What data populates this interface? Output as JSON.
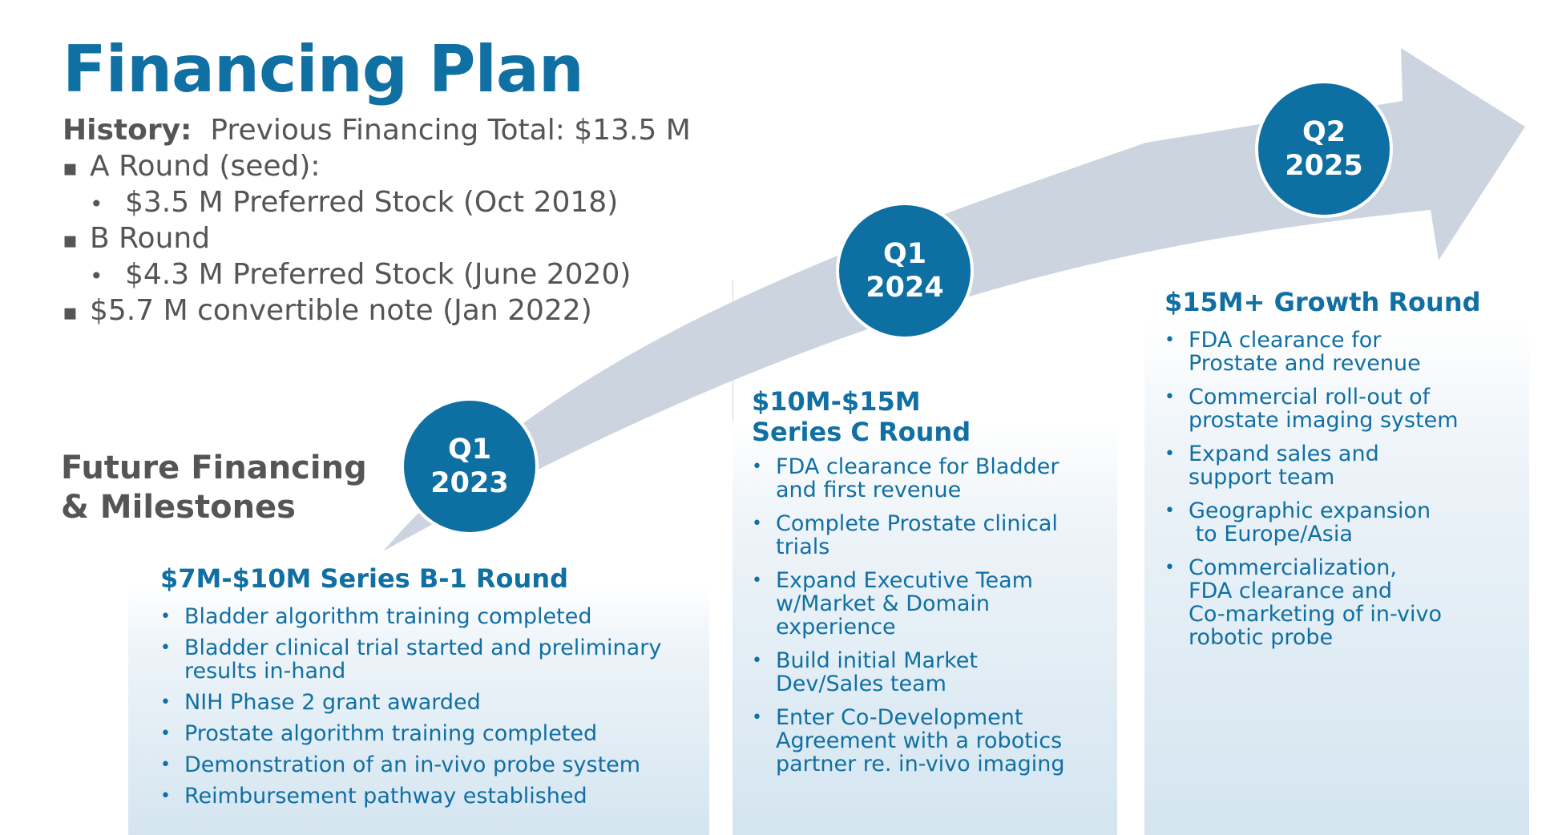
{
  "title": "Financing Plan",
  "history": {
    "label": "History:",
    "total": "Previous Financing Total: $13.5 M",
    "items": [
      {
        "level": 1,
        "text": "A Round (seed):"
      },
      {
        "level": 2,
        "text": "$3.5 M Preferred Stock (Oct 2018)"
      },
      {
        "level": 1,
        "text": "B Round"
      },
      {
        "level": 2,
        "text": "$4.3 M Preferred Stock (June 2020)"
      },
      {
        "level": 1,
        "text": "$5.7 M convertible note (Jan 2022)"
      }
    ]
  },
  "future_heading": [
    "Future Financing",
    "& Milestones"
  ],
  "milestones": [
    {
      "quarter": "Q1",
      "year": "2023",
      "round": [
        "$7M-$10M Series B-1 Round"
      ],
      "bullets": [
        [
          "Bladder algorithm training completed"
        ],
        [
          "Bladder clinical trial started and preliminary",
          "results in-hand"
        ],
        [
          "NIH Phase 2 grant awarded"
        ],
        [
          "Prostate algorithm training completed"
        ],
        [
          "Demonstration of an in-vivo probe system"
        ],
        [
          "Reimbursement pathway established"
        ]
      ]
    },
    {
      "quarter": "Q1",
      "year": "2024",
      "round": [
        "$10M-$15M",
        "Series C Round"
      ],
      "bullets": [
        [
          "FDA clearance for Bladder",
          "and first revenue"
        ],
        [
          "Complete Prostate clinical",
          "trials"
        ],
        [
          "Expand Executive Team",
          "w/Market & Domain",
          "experience"
        ],
        [
          "Build initial Market",
          "Dev/Sales team"
        ],
        [
          "Enter Co-Development",
          "Agreement with a robotics",
          "partner re. in-vivo imaging"
        ]
      ]
    },
    {
      "quarter": "Q2",
      "year": "2025",
      "round": [
        "$15M+ Growth Round"
      ],
      "bullets": [
        [
          "FDA clearance for",
          "Prostate and revenue"
        ],
        [
          "Commercial roll-out of",
          "prostate imaging system"
        ],
        [
          "Expand sales and",
          "support team"
        ],
        [
          "Geographic expansion",
          " to Europe/Asia"
        ],
        [
          "Commercialization,",
          "FDA clearance and",
          "Co-marketing of in-vivo",
          "robotic probe"
        ]
      ]
    }
  ],
  "colors": {
    "brand_blue": "#106fa3",
    "circle_blue": "#0e6fa2",
    "arrow_gray": "#ccd5df",
    "text_gray": "#555555"
  }
}
